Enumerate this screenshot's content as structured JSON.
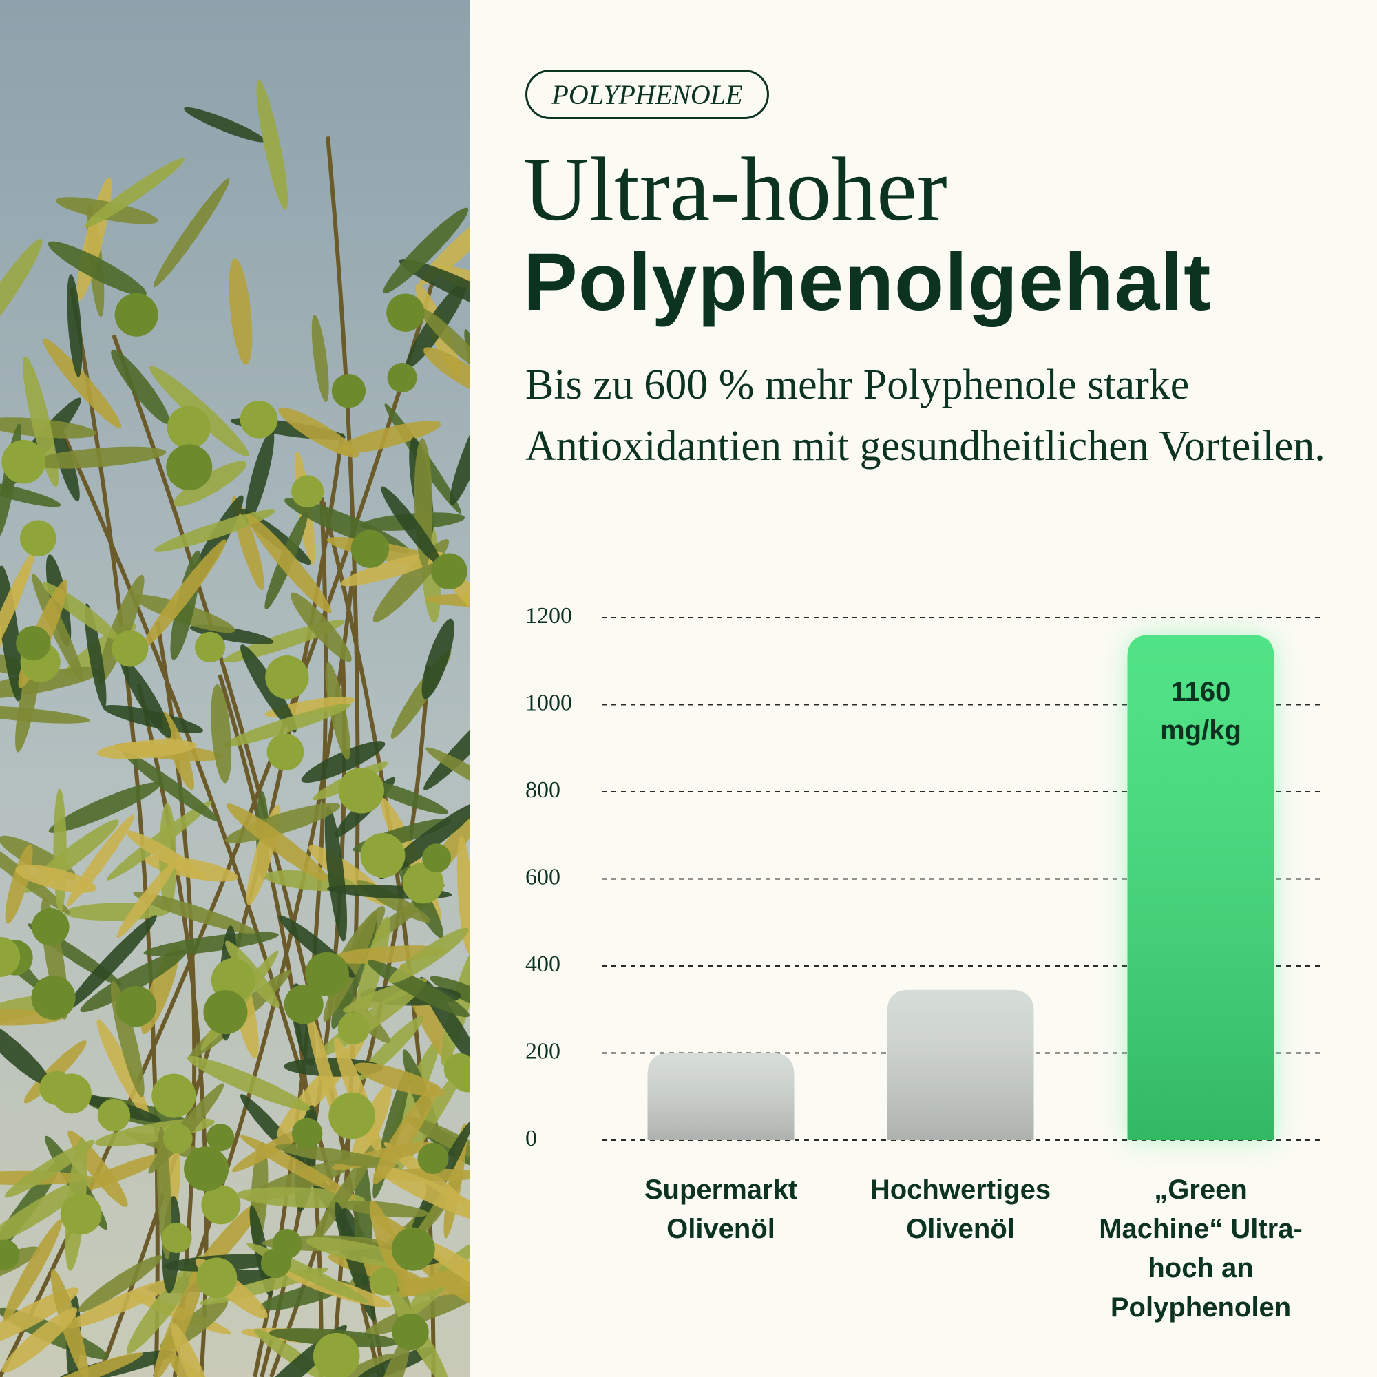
{
  "header": {
    "tag": "POLYPHENOLE",
    "title_light": "Ultra-hoher",
    "title_bold": "Polyphenolgehalt",
    "subtitle": "Bis zu 600 % mehr Polyphenole starke Antioxidantien mit gesundheitlichen Vorteilen."
  },
  "chart_data": {
    "type": "bar",
    "categories": [
      "Supermarkt Olivenöl",
      "Hochwertiges Olivenöl",
      "„Green Machine“ Ultra-hoch an Polyphenolen"
    ],
    "values": [
      200,
      345,
      1160
    ],
    "value_labels": [
      null,
      null,
      "1160 mg/kg"
    ],
    "colors": [
      "#d3d9d4",
      "#d3d9d4",
      "#3ee07a"
    ],
    "ylim": [
      0,
      1200
    ],
    "yticks": [
      0,
      200,
      400,
      600,
      800,
      1000,
      1200
    ],
    "grid": true
  }
}
